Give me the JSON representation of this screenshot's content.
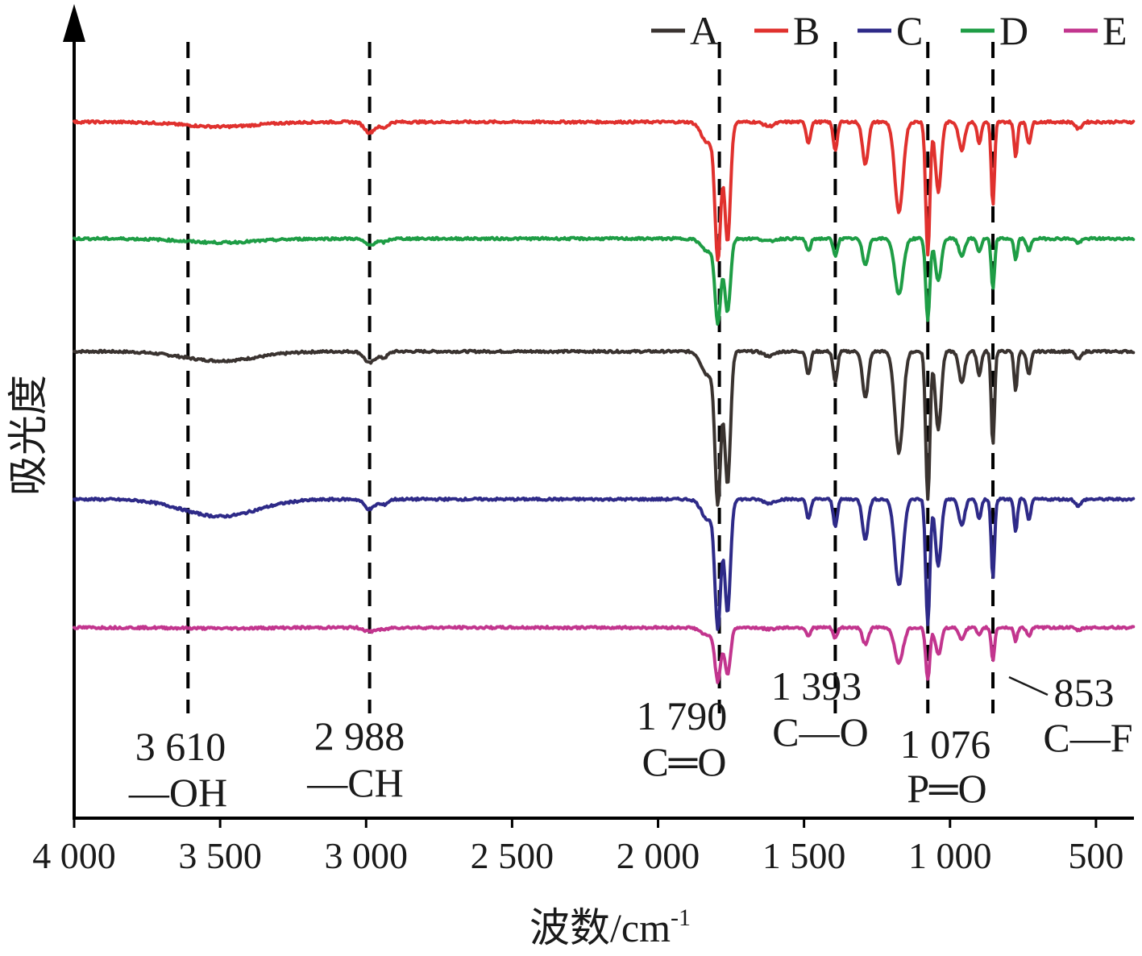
{
  "chart_data": {
    "type": "line",
    "title": "",
    "xlabel": "波数/cm",
    "xlabel_superscript": "-1",
    "ylabel": "吸光度",
    "xlim": [
      4000,
      370
    ],
    "x_reversed": true,
    "x_ticks": [
      4000,
      3500,
      3000,
      2500,
      2000,
      1500,
      1000,
      500
    ],
    "x_tick_labels": [
      "4 000",
      "3 500",
      "3 000",
      "2 500",
      "2 000",
      "1 500",
      "1 000",
      "500"
    ],
    "y_ticks": [],
    "grid": false,
    "legend_position": "top-right",
    "legend_layout": "horizontal",
    "reference_lines": [
      {
        "x": 3610,
        "label_value": "3 610",
        "label_group": "—OH"
      },
      {
        "x": 2988,
        "label_value": "2 988",
        "label_group": "—CH"
      },
      {
        "x": 1790,
        "label_value": "1 790",
        "label_group": "C═O"
      },
      {
        "x": 1393,
        "label_value": "1 393",
        "label_group": "C—O"
      },
      {
        "x": 1076,
        "label_value": "1 076",
        "label_group": "P═O"
      },
      {
        "x": 853,
        "label_value": "853",
        "label_group": "C—F"
      }
    ],
    "series_order_top_to_bottom": [
      "B",
      "D",
      "A",
      "C",
      "E"
    ],
    "series": [
      {
        "name": "A",
        "color": "#3a3330",
        "baseline": 0.6,
        "peak_scale": 1.0,
        "broad_oh": 0.012
      },
      {
        "name": "B",
        "color": "#e0312e",
        "baseline": 0.895,
        "peak_scale": 0.9,
        "broad_oh": 0.006
      },
      {
        "name": "C",
        "color": "#2e2a88",
        "baseline": 0.41,
        "peak_scale": 0.85,
        "broad_oh": 0.022
      },
      {
        "name": "D",
        "color": "#1e9d45",
        "baseline": 0.745,
        "peak_scale": 0.55,
        "broad_oh": 0.005
      },
      {
        "name": "E",
        "color": "#c2358e",
        "baseline": 0.245,
        "peak_scale": 0.35,
        "broad_oh": 0.001
      }
    ],
    "peaks": [
      {
        "x": 2988,
        "depth": 0.015,
        "width": 25
      },
      {
        "x": 2940,
        "depth": 0.008,
        "width": 20
      },
      {
        "x": 1830,
        "depth": 0.03,
        "width": 30
      },
      {
        "x": 1795,
        "depth": 0.19,
        "width": 14
      },
      {
        "x": 1762,
        "depth": 0.17,
        "width": 14
      },
      {
        "x": 1620,
        "depth": 0.006,
        "width": 25
      },
      {
        "x": 1485,
        "depth": 0.03,
        "width": 10
      },
      {
        "x": 1393,
        "depth": 0.04,
        "width": 10
      },
      {
        "x": 1290,
        "depth": 0.06,
        "width": 14
      },
      {
        "x": 1175,
        "depth": 0.13,
        "width": 20
      },
      {
        "x": 1076,
        "depth": 0.19,
        "width": 10
      },
      {
        "x": 1040,
        "depth": 0.1,
        "width": 14
      },
      {
        "x": 960,
        "depth": 0.04,
        "width": 14
      },
      {
        "x": 900,
        "depth": 0.03,
        "width": 10
      },
      {
        "x": 853,
        "depth": 0.12,
        "width": 8
      },
      {
        "x": 775,
        "depth": 0.05,
        "width": 8
      },
      {
        "x": 730,
        "depth": 0.03,
        "width": 10
      },
      {
        "x": 560,
        "depth": 0.01,
        "width": 14
      }
    ]
  }
}
